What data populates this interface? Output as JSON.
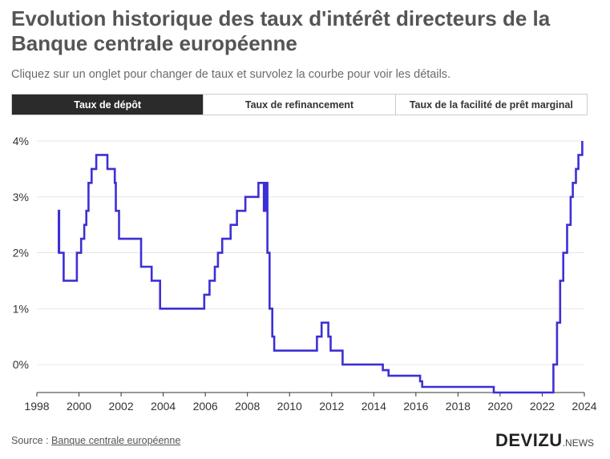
{
  "header": {
    "title": "Evolution historique des taux d'intérêt directeurs de la Banque centrale européenne",
    "subtitle": "Cliquez sur un onglet pour changer de taux et survolez la courbe pour voir les détails."
  },
  "tabs": [
    {
      "label": "Taux de dépôt",
      "active": true
    },
    {
      "label": "Taux de refinancement",
      "active": false
    },
    {
      "label": "Taux de la facilité de prêt marginal",
      "active": false
    }
  ],
  "footer": {
    "source_prefix": "Source : ",
    "source_link": "Banque centrale européenne"
  },
  "brand": {
    "name": "DEVIZU",
    "suffix": ".NEWS"
  },
  "colors": {
    "line": "#3d2fd6",
    "active_tab": "#2b2b2b",
    "grid": "#e6e6e6",
    "axis": "#333333"
  },
  "chart_data": {
    "type": "line",
    "step": true,
    "title": "",
    "xlabel": "",
    "ylabel": "",
    "xlim": [
      1998,
      2024
    ],
    "ylim": [
      -0.5,
      4
    ],
    "x_ticks": [
      "1998",
      "2000",
      "2002",
      "2004",
      "2006",
      "2008",
      "2010",
      "2012",
      "2014",
      "2016",
      "2018",
      "2020",
      "2022",
      "2024"
    ],
    "y_ticks": [
      "4%",
      "3%",
      "2%",
      "1%",
      "0%"
    ],
    "y_tick_values": [
      4,
      3,
      2,
      1,
      0
    ],
    "grid": "horizontal",
    "series": [
      {
        "x": [
          1999.0,
          1999.04,
          1999.06,
          1999.27,
          1999.9,
          2000.1,
          2000.25,
          2000.35,
          2000.45,
          2000.6,
          2000.82,
          2001.35,
          2001.7,
          2001.75,
          2001.9,
          2002.95,
          2003.45,
          2003.85,
          2005.95,
          2006.2,
          2006.45,
          2006.6,
          2006.8,
          2007.2,
          2007.5,
          2007.9,
          2008.52,
          2008.78,
          2008.88,
          2008.95,
          2009.05,
          2009.18,
          2009.27,
          2009.4,
          2011.3,
          2011.52,
          2011.84,
          2011.95,
          2012.52,
          2014.43,
          2014.7,
          2016.2,
          2016.3,
          2019.7,
          2022.53,
          2022.7,
          2022.85,
          2023.0,
          2023.18,
          2023.35,
          2023.45,
          2023.6,
          2023.72,
          2023.9
        ],
        "y": [
          2.0,
          2.75,
          2.0,
          1.5,
          2.0,
          2.25,
          2.5,
          2.75,
          3.25,
          3.5,
          3.75,
          3.5,
          3.25,
          2.75,
          2.25,
          1.75,
          1.5,
          1.0,
          1.25,
          1.5,
          1.75,
          2.0,
          2.25,
          2.5,
          2.75,
          3.0,
          3.25,
          2.75,
          3.25,
          2.0,
          1.0,
          0.5,
          0.25,
          0.25,
          0.5,
          0.75,
          0.5,
          0.25,
          0.0,
          -0.1,
          -0.2,
          -0.3,
          -0.4,
          -0.5,
          0.0,
          0.75,
          1.5,
          2.0,
          2.5,
          3.0,
          3.25,
          3.5,
          3.75,
          4.0
        ]
      }
    ]
  }
}
